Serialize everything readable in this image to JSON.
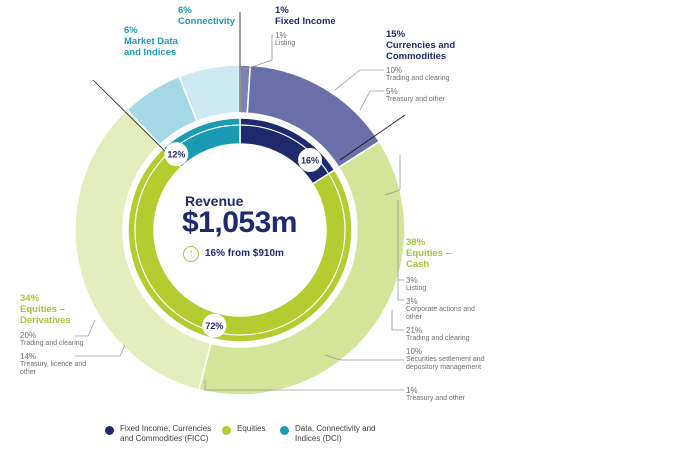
{
  "chart_data": {
    "type": "pie",
    "center": {
      "title": "Revenue",
      "value": "$1,053m",
      "change": "16% from $910m"
    },
    "inner_ring": [
      {
        "name": "Fixed Income, Currencies and Commodities (FICC)",
        "value": 16,
        "label": "16%",
        "color": "#1e2a6e"
      },
      {
        "name": "Equities",
        "value": 72,
        "label": "72%",
        "color": "#b4cc2f"
      },
      {
        "name": "Data, Connectivity and Indices (DCI)",
        "value": 12,
        "label": "12%",
        "color": "#1a9ab3"
      }
    ],
    "outer_ring": [
      {
        "group": "FICC",
        "pct": "1%",
        "name": "Fixed Income",
        "value": 1,
        "color": "#7f83b4"
      },
      {
        "group": "FICC",
        "pct": "15%",
        "name": "Currencies and Commodities",
        "value": 15,
        "color": "#6b6fa9"
      },
      {
        "group": "Equities",
        "pct": "38%",
        "name": "Equities – Cash",
        "value": 38,
        "color": "#d4e59a"
      },
      {
        "group": "Equities",
        "pct": "34%",
        "name": "Equities – Derivatives",
        "value": 34,
        "color": "#e4edbe"
      },
      {
        "group": "DCI",
        "pct": "6%",
        "name": "Market Data and Indices",
        "value": 6,
        "color": "#a5d8e5"
      },
      {
        "group": "DCI",
        "pct": "6%",
        "name": "Connectivity",
        "value": 6,
        "color": "#cde9f1"
      }
    ],
    "detail_labels": {
      "fixed_income": [
        {
          "pct": "1%",
          "name": "Listing"
        }
      ],
      "currencies": [
        {
          "pct": "10%",
          "name": "Trading and clearing"
        },
        {
          "pct": "5%",
          "name": "Treasury and other"
        }
      ],
      "cash": [
        {
          "pct": "3%",
          "name": "Listing"
        },
        {
          "pct": "3%",
          "name": "Corporate actions and other"
        },
        {
          "pct": "21%",
          "name": "Trading and clearing"
        },
        {
          "pct": "10%",
          "name": "Securities settlement and depository management"
        },
        {
          "pct": "1%",
          "name": "Treasury and other"
        }
      ],
      "derivatives": [
        {
          "pct": "20%",
          "name": "Trading and clearing"
        },
        {
          "pct": "14%",
          "name": "Treasury, licence and other"
        }
      ]
    },
    "legend": [
      {
        "label": "Fixed Income, Currencies and Commodities (FICC)",
        "color": "#1e2a6e"
      },
      {
        "label": "Equities",
        "color": "#b4cc2f"
      },
      {
        "label": "Data, Connectivity and Indices (DCI)",
        "color": "#1a9ab3"
      }
    ]
  }
}
